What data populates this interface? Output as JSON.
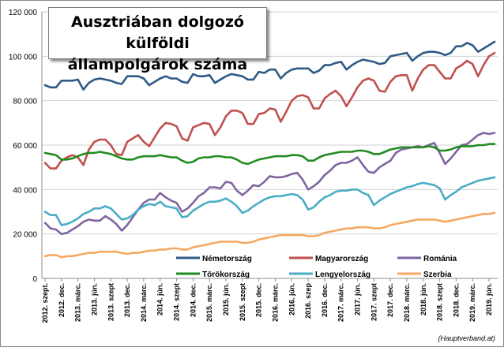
{
  "chart_data": {
    "type": "line",
    "title_line1": "Ausztriában dolgozó külföldi",
    "title_line2": "állampolgárok száma",
    "source": "(Hauptverband.at)",
    "ylim": [
      0,
      120000
    ],
    "y_ticks": [
      "0",
      "20 000",
      "40 000",
      "60 000",
      "80 000",
      "100 000",
      "120 000"
    ],
    "x_tick_labels": [
      "2012. szept.",
      "2012. dec.",
      "2013. márc.",
      "2013. jún.",
      "2013. szept",
      "2013. dec.",
      "2014. márc.",
      "2014. jún.",
      "2014. szept",
      "2014. dec.",
      "2015. márc.",
      "2015. jún.",
      "2015. szept",
      "2015. dec.",
      "2016. márc.",
      "2016. jún.",
      "2016. szep",
      "2016. dec.",
      "2017. márc.",
      "2017. jún.",
      "2017. szept",
      "2017. dec.",
      "2018. márc.",
      "2018. jún.",
      "2018. szept",
      "2018. dec.",
      "2019. márc.",
      "2019. jún."
    ],
    "series": [
      {
        "name": "Németország",
        "color": "#2e5a86",
        "values": [
          87000,
          86000,
          86000,
          89000,
          89000,
          89000,
          89500,
          85000,
          88000,
          89500,
          90000,
          89500,
          89000,
          88000,
          87500,
          91000,
          91000,
          91000,
          90000,
          87000,
          88500,
          90000,
          91000,
          90000,
          90000,
          88500,
          88000,
          92000,
          91000,
          91000,
          91500,
          88000,
          89500,
          91000,
          92000,
          91500,
          91000,
          89500,
          89500,
          93000,
          92500,
          94000,
          94000,
          90000,
          92500,
          94000,
          94500,
          94500,
          94500,
          92500,
          93500,
          96000,
          96000,
          97000,
          97500,
          94000,
          96000,
          97500,
          98500,
          98000,
          97500,
          96500,
          97000,
          100000,
          100500,
          101000,
          101500,
          98000,
          100000,
          101500,
          102000,
          102000,
          101500,
          100500,
          101500,
          104500,
          104500,
          106000,
          105000,
          102000,
          103500,
          105000,
          106500
        ]
      },
      {
        "name": "Magyarország",
        "color": "#c0504d",
        "values": [
          52000,
          49500,
          49500,
          53000,
          54500,
          55500,
          54500,
          51000,
          58000,
          61500,
          62500,
          62500,
          60000,
          56000,
          55500,
          61500,
          63000,
          64500,
          61500,
          59500,
          63500,
          67500,
          70000,
          69500,
          68500,
          63000,
          62000,
          68000,
          69000,
          70000,
          69500,
          64500,
          68000,
          73000,
          75500,
          75500,
          74500,
          69500,
          69500,
          74000,
          74500,
          76500,
          76000,
          70500,
          75000,
          80000,
          82000,
          82500,
          81500,
          76500,
          76500,
          81000,
          83000,
          84500,
          82000,
          77500,
          81500,
          86000,
          89000,
          90000,
          89000,
          84500,
          84000,
          88500,
          91000,
          91500,
          91500,
          84500,
          90000,
          94000,
          96000,
          96000,
          93000,
          90000,
          90000,
          94500,
          96000,
          98000,
          96500,
          91000,
          96000,
          100000,
          101500
        ]
      },
      {
        "name": "Románia",
        "color": "#8064a2",
        "values": [
          25000,
          22500,
          22000,
          20000,
          20500,
          22000,
          23500,
          25500,
          26500,
          26000,
          26000,
          28000,
          26500,
          24500,
          21500,
          24000,
          27500,
          31000,
          34000,
          35500,
          35500,
          38500,
          36500,
          35000,
          34000,
          30000,
          31500,
          34000,
          37000,
          38500,
          41000,
          41000,
          40500,
          43500,
          43000,
          39500,
          37500,
          39500,
          42000,
          41500,
          43500,
          46000,
          45500,
          45500,
          46000,
          47000,
          47500,
          44500,
          40000,
          41500,
          43500,
          46500,
          48500,
          51000,
          52000,
          52000,
          53000,
          54500,
          51000,
          48000,
          47500,
          50000,
          51500,
          53000,
          56500,
          58000,
          58500,
          59000,
          59500,
          59000,
          60000,
          61000,
          56500,
          51500,
          54000,
          57000,
          60000,
          60500,
          62500,
          64500,
          65500,
          65000,
          65500
        ]
      },
      {
        "name": "Törökország",
        "color": "#228b22",
        "values": [
          56500,
          56000,
          55500,
          53500,
          53500,
          54000,
          55000,
          56000,
          56500,
          56500,
          57000,
          56500,
          56000,
          55000,
          54000,
          53500,
          53500,
          54500,
          55000,
          55000,
          55000,
          55500,
          55000,
          54500,
          54500,
          53000,
          52000,
          52500,
          54000,
          54500,
          54500,
          55000,
          55000,
          54500,
          54500,
          53500,
          52000,
          51500,
          52500,
          53500,
          54000,
          54500,
          55000,
          55000,
          55000,
          55500,
          55500,
          55000,
          53000,
          53000,
          54500,
          55500,
          56000,
          56500,
          57000,
          57000,
          57000,
          57500,
          57500,
          57000,
          56000,
          56000,
          57000,
          58000,
          58500,
          59000,
          59000,
          59000,
          59000,
          59000,
          59500,
          59000,
          57500,
          57500,
          58000,
          59000,
          59500,
          59500,
          59500,
          60000,
          60000,
          60500,
          60500
        ]
      },
      {
        "name": "Lengyelország",
        "color": "#4bacc6",
        "values": [
          30000,
          28500,
          28500,
          24000,
          24500,
          25500,
          27000,
          29000,
          30000,
          31500,
          31500,
          32500,
          31500,
          29000,
          26500,
          27000,
          28500,
          31000,
          32500,
          33500,
          33000,
          34500,
          32500,
          32000,
          31500,
          27500,
          28000,
          30500,
          32000,
          33500,
          34500,
          34500,
          35000,
          36000,
          34500,
          32500,
          29500,
          30500,
          32500,
          34000,
          35500,
          36500,
          37000,
          37000,
          37500,
          38000,
          37500,
          35500,
          31000,
          32000,
          34500,
          36500,
          37500,
          39000,
          39500,
          39500,
          40000,
          40000,
          38500,
          37500,
          33000,
          35000,
          36500,
          38000,
          39000,
          40000,
          41000,
          41500,
          42500,
          43000,
          42500,
          42000,
          40500,
          35500,
          37500,
          39000,
          41000,
          42000,
          43000,
          44000,
          44500,
          45000,
          45500
        ]
      },
      {
        "name": "Szerbia",
        "color": "#f5a862",
        "values": [
          10000,
          10500,
          10500,
          9500,
          10000,
          10000,
          10500,
          11000,
          11500,
          11500,
          12000,
          12000,
          12000,
          12000,
          11500,
          11000,
          11500,
          11500,
          12000,
          12500,
          12500,
          13000,
          13000,
          13500,
          13500,
          13000,
          13000,
          14000,
          14500,
          15000,
          15500,
          16000,
          16500,
          16500,
          16500,
          16500,
          16000,
          16000,
          16500,
          17500,
          18000,
          18500,
          19000,
          19500,
          19500,
          19500,
          19500,
          19500,
          19000,
          19000,
          19500,
          20500,
          21000,
          21500,
          22000,
          22500,
          22500,
          23000,
          23000,
          23000,
          22500,
          22500,
          23000,
          24000,
          24500,
          25000,
          25500,
          26000,
          26500,
          26500,
          26500,
          26500,
          26000,
          25500,
          26000,
          26500,
          27000,
          27500,
          28000,
          28500,
          29000,
          29000,
          29500
        ]
      }
    ]
  }
}
